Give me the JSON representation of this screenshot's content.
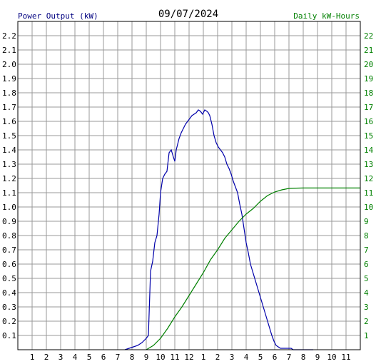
{
  "chart_data": {
    "type": "line",
    "title": "09/07/2024",
    "left_axis_label": "Power Output (kW)",
    "right_axis_label": "Daily kW-Hours",
    "left_ylim": [
      0,
      2.3
    ],
    "right_ylim": [
      0,
      23
    ],
    "left_ticks": [
      "0.1",
      "0.2",
      "0.3",
      "0.4",
      "0.5",
      "0.6",
      "0.7",
      "0.8",
      "0.9",
      "1.0",
      "1.1",
      "1.2",
      "1.3",
      "1.4",
      "1.5",
      "1.6",
      "1.7",
      "1.8",
      "1.9",
      "2.0",
      "2.1",
      "2.2"
    ],
    "right_ticks": [
      "1",
      "2",
      "3",
      "4",
      "5",
      "6",
      "7",
      "8",
      "9",
      "10",
      "11",
      "12",
      "13",
      "14",
      "15",
      "16",
      "17",
      "18",
      "19",
      "20",
      "21",
      "22"
    ],
    "x_ticks": [
      "1",
      "2",
      "3",
      "4",
      "5",
      "6",
      "7",
      "8",
      "9",
      "10",
      "11",
      "12",
      "1",
      "2",
      "3",
      "4",
      "5",
      "6",
      "7",
      "8",
      "9",
      "10",
      "11"
    ],
    "xlim_hours": [
      0,
      24
    ],
    "grid": true,
    "colors": {
      "power": "#0000aa",
      "energy": "#008000",
      "left_label": "#000080",
      "right_label": "#008000",
      "grid": "#999999"
    },
    "series": [
      {
        "name": "Power Output (kW)",
        "axis": "left",
        "x": [
          7.5,
          7.8,
          8.1,
          8.4,
          8.7,
          9.0,
          9.15,
          9.3,
          9.45,
          9.6,
          9.75,
          9.9,
          10.0,
          10.15,
          10.3,
          10.45,
          10.6,
          10.75,
          10.9,
          11.0,
          11.1,
          11.2,
          11.3,
          11.45,
          11.6,
          11.75,
          11.9,
          12.05,
          12.2,
          12.35,
          12.5,
          12.65,
          12.8,
          12.95,
          13.1,
          13.25,
          13.35,
          13.45,
          13.6,
          13.75,
          13.9,
          14.05,
          14.2,
          14.35,
          14.5,
          14.65,
          14.8,
          14.95,
          15.1,
          15.25,
          15.4,
          15.55,
          15.7,
          15.85,
          16.0,
          16.15,
          16.3,
          16.45,
          16.6,
          16.75,
          16.9,
          17.05,
          17.2,
          17.35,
          17.5,
          17.65,
          17.8,
          17.95,
          18.1,
          18.25,
          18.4,
          18.55,
          18.7,
          18.85,
          19.0,
          19.15,
          19.3,
          19.5,
          19.8,
          20.1,
          20.4,
          20.7
        ],
        "values": [
          0.0,
          0.01,
          0.02,
          0.03,
          0.05,
          0.08,
          0.1,
          0.55,
          0.62,
          0.75,
          0.8,
          0.95,
          1.1,
          1.2,
          1.23,
          1.25,
          1.38,
          1.4,
          1.35,
          1.32,
          1.4,
          1.44,
          1.48,
          1.52,
          1.55,
          1.58,
          1.6,
          1.62,
          1.64,
          1.65,
          1.66,
          1.68,
          1.67,
          1.65,
          1.68,
          1.67,
          1.66,
          1.64,
          1.58,
          1.5,
          1.45,
          1.42,
          1.4,
          1.38,
          1.35,
          1.3,
          1.27,
          1.23,
          1.18,
          1.14,
          1.1,
          1.02,
          0.95,
          0.85,
          0.75,
          0.68,
          0.6,
          0.55,
          0.5,
          0.45,
          0.4,
          0.35,
          0.3,
          0.25,
          0.2,
          0.15,
          0.1,
          0.06,
          0.03,
          0.02,
          0.01,
          0.01,
          0.01,
          0.01,
          0.01,
          0.01,
          0.0,
          0.0,
          0.0,
          0.0,
          0.0,
          0.0
        ]
      },
      {
        "name": "Daily kW-Hours",
        "axis": "right",
        "x": [
          9.0,
          9.5,
          10.0,
          10.5,
          11.0,
          11.5,
          12.0,
          12.5,
          13.0,
          13.5,
          14.0,
          14.5,
          15.0,
          15.5,
          16.0,
          16.5,
          17.0,
          17.5,
          18.0,
          18.5,
          19.0,
          19.5,
          20.0,
          21.0,
          22.0,
          23.0,
          24.0
        ],
        "values": [
          0.0,
          0.3,
          0.8,
          1.5,
          2.3,
          3.0,
          3.8,
          4.6,
          5.4,
          6.3,
          7.0,
          7.8,
          8.4,
          9.0,
          9.5,
          9.9,
          10.4,
          10.8,
          11.05,
          11.2,
          11.3,
          11.32,
          11.33,
          11.33,
          11.33,
          11.33,
          11.33
        ]
      }
    ]
  }
}
